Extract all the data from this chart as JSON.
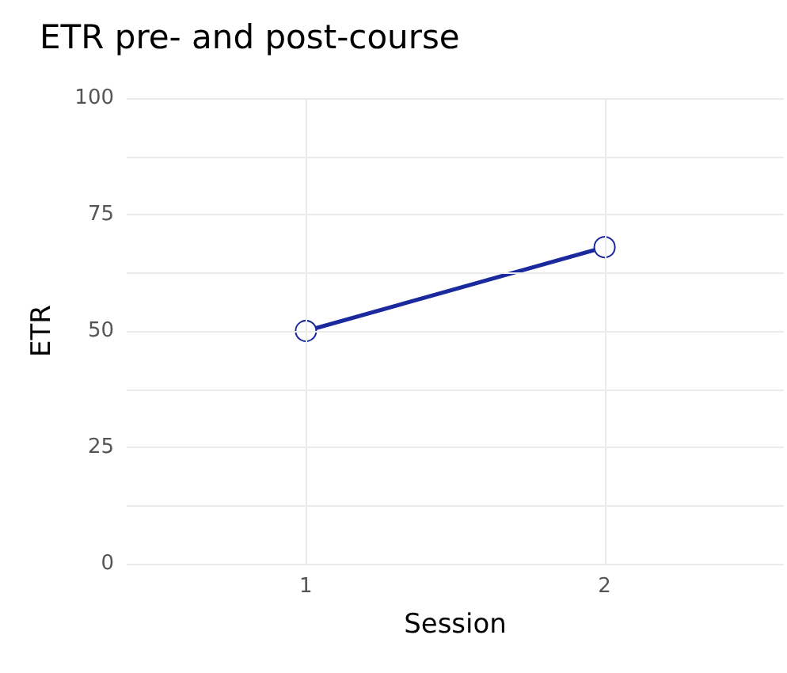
{
  "chart_data": {
    "type": "line",
    "title": "ETR pre- and post-course",
    "xlabel": "Session",
    "ylabel": "ETR",
    "x": [
      1,
      2
    ],
    "series": [
      {
        "color": "#1a2a9e",
        "values": [
          50,
          68
        ]
      }
    ],
    "xlim": [
      0.4,
      2.6
    ],
    "xticks": [
      1,
      2
    ],
    "ylim": [
      0,
      100
    ],
    "yticks": [
      0,
      {
        "value": 12.5,
        "label": null
      },
      25,
      {
        "value": 37.5,
        "label": null
      },
      50,
      {
        "value": 62.5,
        "label": null
      },
      75,
      {
        "value": 87.5,
        "label": null
      },
      100
    ],
    "grid": true,
    "marker": "circle",
    "line_style": "solid"
  }
}
